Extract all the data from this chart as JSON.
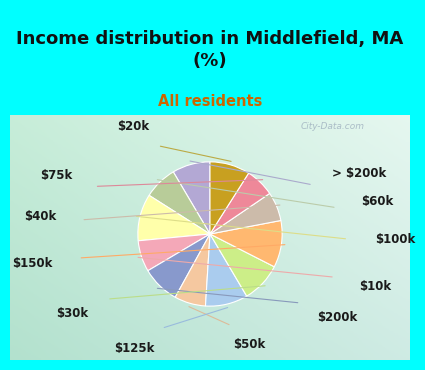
{
  "title": "Income distribution in Middlefield, MA\n(%)",
  "subtitle": "All residents",
  "title_color": "#111111",
  "subtitle_color": "#cc6600",
  "background_cyan": "#00ffff",
  "background_chart_gradient_left": "#c8eeda",
  "background_chart_gradient_right": "#f0faf5",
  "labels": [
    "> $200k",
    "$60k",
    "$100k",
    "$10k",
    "$200k",
    "$50k",
    "$125k",
    "$30k",
    "$150k",
    "$40k",
    "$75k",
    "$20k"
  ],
  "values": [
    8.5,
    7.5,
    10.5,
    7.0,
    8.5,
    7.0,
    9.5,
    9.0,
    10.5,
    6.5,
    6.5,
    9.0
  ],
  "colors": [
    "#b3a8d4",
    "#b8cc99",
    "#ffffaa",
    "#f4a8b8",
    "#8899cc",
    "#f5c8a0",
    "#aaccee",
    "#ccee88",
    "#ffb870",
    "#ccbbaa",
    "#ee8899",
    "#c8a020"
  ],
  "startangle": 90,
  "label_fontsize": 8.5,
  "title_fontsize": 13,
  "watermark": "City-Data.com"
}
